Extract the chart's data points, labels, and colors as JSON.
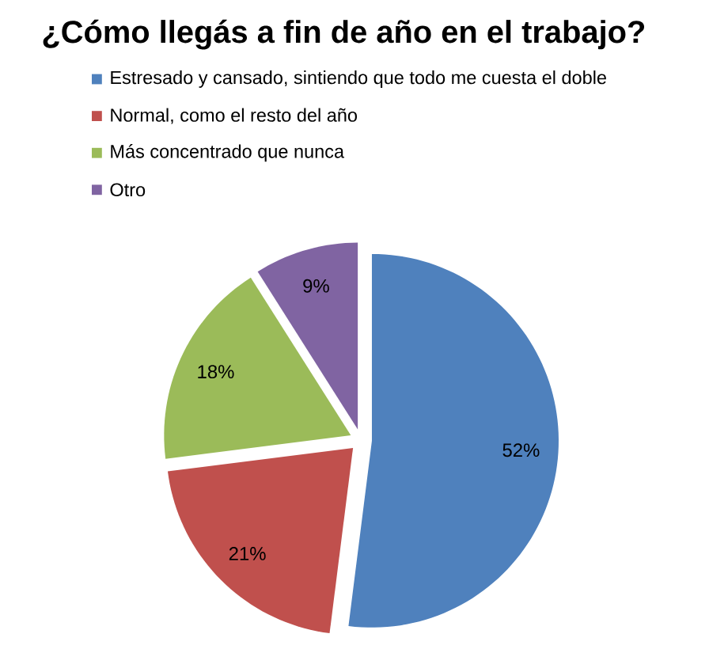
{
  "chart_data": {
    "type": "pie",
    "title": "¿Cómo llegás a fin de año en el trabajo?",
    "categories": [
      "Estresado y cansado, sintiendo que todo me cuesta el doble",
      "Normal, como el resto del año",
      "Más concentrado que nunca",
      "Otro"
    ],
    "values": [
      52,
      21,
      18,
      9
    ],
    "value_labels": [
      "52%",
      "21%",
      "18%",
      "9%"
    ],
    "colors": [
      "#4f81bd",
      "#c0504d",
      "#9bbb59",
      "#8064a2"
    ],
    "legend": "top"
  }
}
